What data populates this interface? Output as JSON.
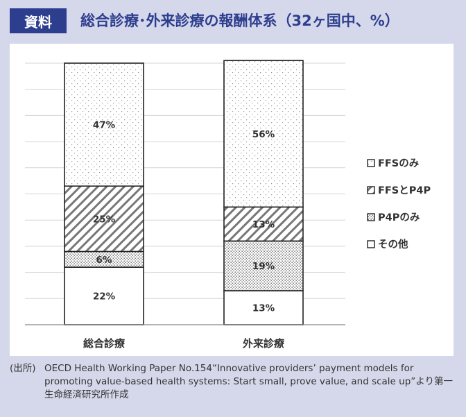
{
  "header": {
    "tag": "資料",
    "title": "総合診療･外来診療の報酬体系（32ヶ国中、%）"
  },
  "colors": {
    "header_bg": "#2e3e8f",
    "page_bg": "#d5d8ea",
    "title": "#2e3e8f"
  },
  "chart_data": {
    "type": "bar",
    "stacked": true,
    "categories": [
      "総合診療",
      "外来診療"
    ],
    "series": [
      {
        "name": "その他",
        "values": [
          22,
          13
        ],
        "pattern": "blank"
      },
      {
        "name": "P4Pのみ",
        "values": [
          6,
          19
        ],
        "pattern": "dots"
      },
      {
        "name": "FFSとP4P",
        "values": [
          25,
          13
        ],
        "pattern": "hatch"
      },
      {
        "name": "FFSのみ",
        "values": [
          47,
          56
        ],
        "pattern": "sparse-dots"
      }
    ],
    "data_labels": [
      [
        "22%",
        "6%",
        "25%",
        "47%"
      ],
      [
        "13%",
        "19%",
        "13%",
        "56%"
      ]
    ],
    "legend_order": [
      "FFSのみ",
      "FFSとP4P",
      "P4Pのみ",
      "その他"
    ],
    "legend_position": "right",
    "ylim": [
      0,
      100
    ],
    "grid": true
  },
  "source": {
    "prefix": "(出所)",
    "text": "OECD Health Working Paper No.154“Innovative providers’ payment models for promoting value-based health systems: Start small, prove value, and scale up”より第一生命経済研究所作成"
  }
}
